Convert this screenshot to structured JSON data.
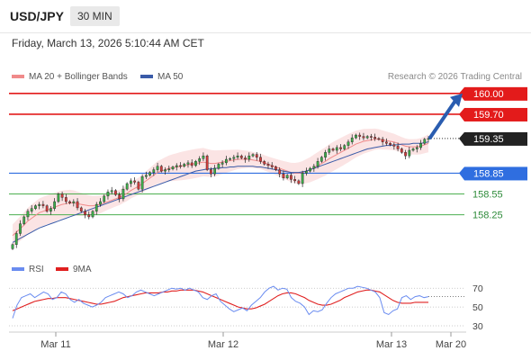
{
  "header": {
    "symbol": "USD/JPY",
    "timeframe": "30 MIN",
    "datetime": "Friday, March 13, 2026 5:10:44 AM CET",
    "credit": "Research © 2026 Trading Central"
  },
  "legend": {
    "ma20": "MA 20 + Bollinger Bands",
    "ma50": "MA 50",
    "rsi": "RSI",
    "ma9": "9MA"
  },
  "colors": {
    "resistance": "#e31b1b",
    "support": "#2f6ee0",
    "target": "#4caf50",
    "current": "#222222",
    "bullish_candle": "#3cae4a",
    "bearish_candle": "#d23c3c",
    "ma20": "#f08a8a",
    "ma50": "#3a5ba8",
    "bollinger_fill": "#fbe4e4",
    "rsi": "#6a8cf0",
    "ma9": "#e02020",
    "arrow": "#2a5db0"
  },
  "chart_data": [
    {
      "type": "candlestick",
      "title": "USD/JPY 30 MIN",
      "ylim": [
        157.7,
        160.05
      ],
      "x_ticks": [
        "Mar 11",
        "Mar 12",
        "Mar 13",
        "Mar 20"
      ],
      "levels": [
        {
          "label": "160.00",
          "value": 160.0,
          "kind": "resistance"
        },
        {
          "label": "159.70",
          "value": 159.7,
          "kind": "resistance"
        },
        {
          "label": "159.35",
          "value": 159.35,
          "kind": "current"
        },
        {
          "label": "158.85",
          "value": 158.85,
          "kind": "support"
        },
        {
          "label": "158.55",
          "value": 158.55,
          "kind": "target"
        },
        {
          "label": "158.25",
          "value": 158.25,
          "kind": "target"
        }
      ],
      "close_series": [
        157.82,
        157.98,
        158.12,
        158.22,
        158.3,
        158.34,
        158.38,
        158.4,
        158.38,
        158.3,
        158.34,
        158.44,
        158.55,
        158.5,
        158.44,
        158.42,
        158.44,
        158.35,
        158.3,
        158.25,
        158.22,
        158.3,
        158.4,
        158.44,
        158.52,
        158.58,
        158.6,
        158.54,
        158.48,
        158.62,
        158.7,
        158.74,
        158.72,
        158.62,
        158.8,
        158.82,
        158.86,
        158.9,
        158.95,
        158.88,
        158.9,
        158.91,
        158.94,
        158.96,
        158.95,
        158.98,
        159.0,
        158.96,
        159.02,
        159.06,
        159.1,
        158.9,
        158.84,
        158.92,
        158.98,
        159.0,
        159.05,
        159.06,
        159.08,
        159.1,
        159.07,
        159.05,
        159.1,
        159.12,
        159.08,
        159.02,
        158.98,
        158.96,
        158.94,
        158.9,
        158.84,
        158.78,
        158.82,
        158.76,
        158.74,
        158.7,
        158.85,
        158.88,
        158.92,
        158.95,
        159.02,
        159.08,
        159.15,
        159.2,
        159.18,
        159.22,
        159.2,
        159.25,
        159.3,
        159.36,
        159.4,
        159.38,
        159.36,
        159.38,
        159.37,
        159.35,
        159.34,
        159.3,
        159.28,
        159.26,
        159.24,
        159.2,
        159.15,
        159.1,
        159.18,
        159.2,
        159.22,
        159.28,
        159.34,
        159.35
      ],
      "ma20_series": [
        157.95,
        158.0,
        158.05,
        158.1,
        158.16,
        158.2,
        158.24,
        158.28,
        158.3,
        158.32,
        158.34,
        158.36,
        158.38,
        158.4,
        158.41,
        158.42,
        158.42,
        158.41,
        158.4,
        158.39,
        158.38,
        158.38,
        158.39,
        158.4,
        158.42,
        158.44,
        158.46,
        158.48,
        158.5,
        158.53,
        158.56,
        158.6,
        158.63,
        158.66,
        158.7,
        158.74,
        158.78,
        158.82,
        158.86,
        158.88,
        158.9,
        158.92,
        158.93,
        158.94,
        158.95,
        158.96,
        158.97,
        158.98,
        158.99,
        159.0,
        159.01,
        159.0,
        158.99,
        158.99,
        159.0,
        159.01,
        159.02,
        159.03,
        159.04,
        159.05,
        159.05,
        159.05,
        159.05,
        159.04,
        159.03,
        159.02,
        159.0,
        158.98,
        158.96,
        158.94,
        158.92,
        158.9,
        158.88,
        158.86,
        158.85,
        158.85,
        158.86,
        158.88,
        158.9,
        158.93,
        158.96,
        158.99,
        159.02,
        159.06,
        159.09,
        159.12,
        159.15,
        159.18,
        159.21,
        159.24,
        159.27,
        159.29,
        159.31,
        159.32,
        159.33,
        159.34,
        159.34,
        159.33,
        159.32,
        159.31,
        159.3,
        159.28,
        159.26,
        159.24,
        159.23,
        159.23,
        159.23,
        159.24,
        159.26,
        159.28
      ],
      "ma50_series": [
        157.85,
        157.88,
        157.91,
        157.94,
        157.97,
        158.0,
        158.03,
        158.06,
        158.08,
        158.1,
        158.12,
        158.14,
        158.16,
        158.18,
        158.2,
        158.22,
        158.24,
        158.26,
        158.28,
        158.3,
        158.32,
        158.34,
        158.36,
        158.38,
        158.4,
        158.42,
        158.44,
        158.46,
        158.48,
        158.5,
        158.52,
        158.54,
        158.56,
        158.58,
        158.6,
        158.62,
        158.64,
        158.66,
        158.68,
        158.7,
        158.72,
        158.74,
        158.76,
        158.78,
        158.8,
        158.82,
        158.84,
        158.86,
        158.88,
        158.89,
        158.9,
        158.91,
        158.91,
        158.92,
        158.92,
        158.93,
        158.93,
        158.94,
        158.94,
        158.95,
        158.95,
        158.95,
        158.95,
        158.95,
        158.94,
        158.94,
        158.93,
        158.92,
        158.91,
        158.9,
        158.89,
        158.88,
        158.87,
        158.86,
        158.86,
        158.86,
        158.87,
        158.88,
        158.9,
        158.92,
        158.94,
        158.96,
        158.98,
        159.0,
        159.02,
        159.04,
        159.06,
        159.08,
        159.1,
        159.12,
        159.14,
        159.16,
        159.18,
        159.2,
        159.21,
        159.22,
        159.23,
        159.24,
        159.25,
        159.25,
        159.26,
        159.26,
        159.27,
        159.27,
        159.27,
        159.28,
        159.28,
        159.28,
        159.29,
        159.3
      ],
      "projection": {
        "from": 159.35,
        "to": 160.0
      }
    },
    {
      "type": "line",
      "title": "RSI",
      "ylim": [
        30,
        75
      ],
      "y_ticks": [
        70,
        50,
        30
      ],
      "series": [
        {
          "name": "RSI",
          "values": [
            38,
            52,
            60,
            62,
            64,
            60,
            63,
            66,
            64,
            58,
            60,
            66,
            64,
            58,
            55,
            58,
            54,
            52,
            50,
            52,
            55,
            60,
            62,
            64,
            66,
            64,
            60,
            62,
            66,
            68,
            66,
            64,
            62,
            64,
            66,
            68,
            70,
            69,
            70,
            68,
            70,
            68,
            66,
            60,
            58,
            62,
            64,
            56,
            52,
            48,
            45,
            47,
            49,
            46,
            52,
            56,
            60,
            66,
            70,
            72,
            68,
            70,
            69,
            60,
            56,
            54,
            50,
            42,
            46,
            45,
            47,
            54,
            60,
            64,
            66,
            68,
            70,
            70,
            72,
            71,
            70,
            68,
            66,
            60,
            44,
            42,
            46,
            48,
            60,
            62,
            58,
            61,
            62,
            60,
            61
          ]
        },
        {
          "name": "9MA",
          "values": [
            46,
            48,
            50,
            52,
            54,
            56,
            57,
            58,
            59,
            59,
            60,
            60,
            60,
            59,
            58,
            57,
            56,
            55,
            54,
            53,
            53,
            54,
            55,
            56,
            58,
            60,
            61,
            62,
            63,
            64,
            65,
            65,
            65,
            65,
            66,
            66,
            67,
            67,
            68,
            68,
            68,
            68,
            67,
            66,
            64,
            62,
            60,
            58,
            56,
            54,
            52,
            50,
            49,
            48,
            48,
            49,
            51,
            53,
            56,
            59,
            62,
            64,
            65,
            65,
            64,
            62,
            60,
            57,
            55,
            53,
            52,
            52,
            53,
            55,
            57,
            60,
            62,
            64,
            66,
            67,
            68,
            68,
            67,
            66,
            63,
            60,
            57,
            55,
            54,
            54,
            54,
            55,
            55,
            55,
            55
          ]
        }
      ]
    }
  ]
}
